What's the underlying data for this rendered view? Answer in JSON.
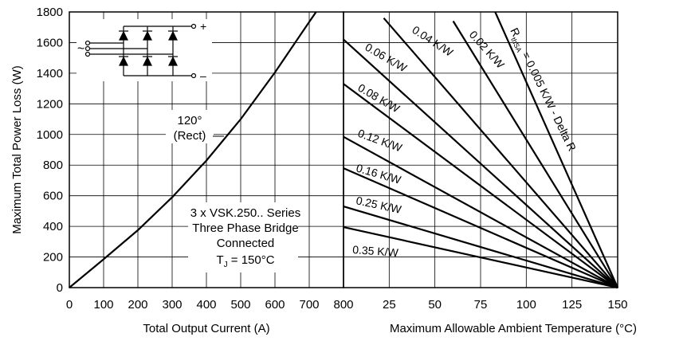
{
  "chart_data": [
    {
      "type": "line",
      "panel": "left",
      "xlabel": "Total Output Current (A)",
      "ylabel": "Maximum Total Power Loss (W)",
      "xlim": [
        0,
        800
      ],
      "ylim": [
        0,
        1800
      ],
      "x_ticks": [
        "0",
        "100",
        "200",
        "300",
        "400",
        "500",
        "600",
        "700",
        "800"
      ],
      "y_ticks": [
        "0",
        "200",
        "400",
        "600",
        "800",
        "1000",
        "1200",
        "1400",
        "1600",
        "1800"
      ],
      "grid": true,
      "series": [
        {
          "name": "",
          "points": [
            [
              0,
              0
            ],
            [
              100,
              185
            ],
            [
              200,
              375
            ],
            [
              300,
              590
            ],
            [
              400,
              830
            ],
            [
              500,
              1100
            ],
            [
              600,
              1405
            ],
            [
              700,
              1735
            ],
            [
              720,
              1800
            ]
          ]
        }
      ],
      "annotations": {
        "conduction_line1": "120°",
        "conduction_line2": "(Rect)",
        "device_line1": "3 x VSK.250.. Series",
        "device_line2": "Three Phase Bridge",
        "device_line3": "Connected",
        "tj_prefix": "T",
        "tj_sub": "J",
        "tj_suffix": " = 150°C"
      },
      "schematic_labels": {
        "plus": "+",
        "minus": "–",
        "ac": "~"
      }
    },
    {
      "type": "line",
      "panel": "right",
      "xlabel": "Maximum Allowable Ambient Temperature (°C)",
      "xlim": [
        0,
        150
      ],
      "x_ticks": [
        "25",
        "50",
        "75",
        "100",
        "125",
        "150"
      ],
      "grid": true,
      "series": [
        {
          "name": "RthSA = 0.005 K/W - Delta R",
          "points": [
            [
              83,
              1800
            ],
            [
              150,
              0
            ]
          ]
        },
        {
          "name": "0.02 K/W",
          "points": [
            [
              60,
              1740
            ],
            [
              150,
              0
            ]
          ]
        },
        {
          "name": "0.04 K/W",
          "points": [
            [
              22,
              1760
            ],
            [
              150,
              0
            ]
          ]
        },
        {
          "name": "0.06 K/W",
          "points": [
            [
              0,
              1620
            ],
            [
              150,
              0
            ]
          ]
        },
        {
          "name": "0.08 K/W",
          "points": [
            [
              0,
              1330
            ],
            [
              150,
              0
            ]
          ]
        },
        {
          "name": "0.12 K/W",
          "points": [
            [
              0,
              985
            ],
            [
              150,
              0
            ]
          ]
        },
        {
          "name": "0.16 K/W",
          "points": [
            [
              0,
              780
            ],
            [
              150,
              0
            ]
          ]
        },
        {
          "name": "0.25 K/W",
          "points": [
            [
              0,
              530
            ],
            [
              150,
              0
            ]
          ]
        },
        {
          "name": "0.35 K/W",
          "points": [
            [
              0,
              395
            ],
            [
              150,
              0
            ]
          ]
        }
      ],
      "line_labels": [
        "R",
        "thSA",
        " = 0.005 K/W - Delta R",
        "0.02 K/W",
        "0.04 K/W",
        "0.06 K/W",
        "0.08 K/W",
        "0.12 K/W",
        "0.16 K/W",
        "0.25 K/W",
        "0.35 K/W"
      ]
    }
  ]
}
